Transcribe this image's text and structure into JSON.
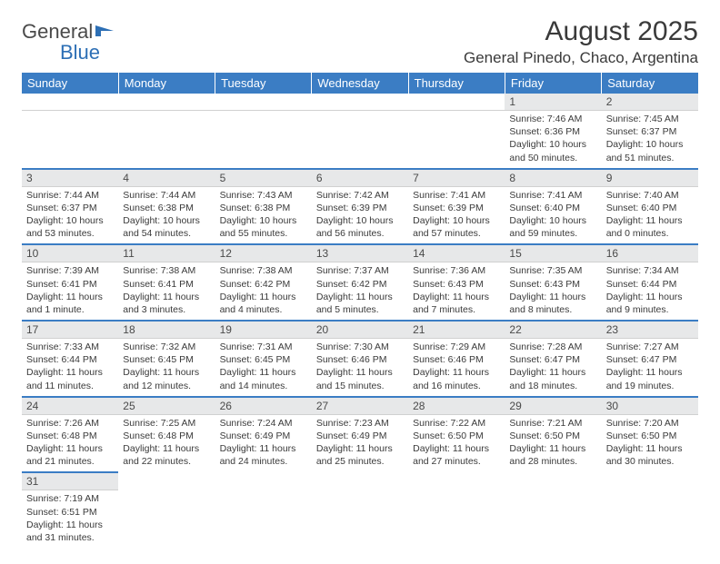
{
  "logo": {
    "word1": "General",
    "word2": "Blue"
  },
  "title": "August 2025",
  "location": "General Pinedo, Chaco, Argentina",
  "header_bg": "#3b7dc4",
  "days_of_week": [
    "Sunday",
    "Monday",
    "Tuesday",
    "Wednesday",
    "Thursday",
    "Friday",
    "Saturday"
  ],
  "colors": {
    "header_bg": "#3b7dc4",
    "header_text": "#ffffff",
    "daynum_bg": "#e7e8e9",
    "text": "#3a3a3a",
    "divider": "#3b7dc4"
  },
  "fonts": {
    "title_size_pt": 22,
    "location_size_pt": 13,
    "dow_size_pt": 10,
    "daynum_size_pt": 9,
    "body_size_pt": 8
  },
  "weeks": [
    [
      null,
      null,
      null,
      null,
      null,
      {
        "n": "1",
        "sunrise": "Sunrise: 7:46 AM",
        "sunset": "Sunset: 6:36 PM",
        "dl1": "Daylight: 10 hours",
        "dl2": "and 50 minutes."
      },
      {
        "n": "2",
        "sunrise": "Sunrise: 7:45 AM",
        "sunset": "Sunset: 6:37 PM",
        "dl1": "Daylight: 10 hours",
        "dl2": "and 51 minutes."
      }
    ],
    [
      {
        "n": "3",
        "sunrise": "Sunrise: 7:44 AM",
        "sunset": "Sunset: 6:37 PM",
        "dl1": "Daylight: 10 hours",
        "dl2": "and 53 minutes."
      },
      {
        "n": "4",
        "sunrise": "Sunrise: 7:44 AM",
        "sunset": "Sunset: 6:38 PM",
        "dl1": "Daylight: 10 hours",
        "dl2": "and 54 minutes."
      },
      {
        "n": "5",
        "sunrise": "Sunrise: 7:43 AM",
        "sunset": "Sunset: 6:38 PM",
        "dl1": "Daylight: 10 hours",
        "dl2": "and 55 minutes."
      },
      {
        "n": "6",
        "sunrise": "Sunrise: 7:42 AM",
        "sunset": "Sunset: 6:39 PM",
        "dl1": "Daylight: 10 hours",
        "dl2": "and 56 minutes."
      },
      {
        "n": "7",
        "sunrise": "Sunrise: 7:41 AM",
        "sunset": "Sunset: 6:39 PM",
        "dl1": "Daylight: 10 hours",
        "dl2": "and 57 minutes."
      },
      {
        "n": "8",
        "sunrise": "Sunrise: 7:41 AM",
        "sunset": "Sunset: 6:40 PM",
        "dl1": "Daylight: 10 hours",
        "dl2": "and 59 minutes."
      },
      {
        "n": "9",
        "sunrise": "Sunrise: 7:40 AM",
        "sunset": "Sunset: 6:40 PM",
        "dl1": "Daylight: 11 hours",
        "dl2": "and 0 minutes."
      }
    ],
    [
      {
        "n": "10",
        "sunrise": "Sunrise: 7:39 AM",
        "sunset": "Sunset: 6:41 PM",
        "dl1": "Daylight: 11 hours",
        "dl2": "and 1 minute."
      },
      {
        "n": "11",
        "sunrise": "Sunrise: 7:38 AM",
        "sunset": "Sunset: 6:41 PM",
        "dl1": "Daylight: 11 hours",
        "dl2": "and 3 minutes."
      },
      {
        "n": "12",
        "sunrise": "Sunrise: 7:38 AM",
        "sunset": "Sunset: 6:42 PM",
        "dl1": "Daylight: 11 hours",
        "dl2": "and 4 minutes."
      },
      {
        "n": "13",
        "sunrise": "Sunrise: 7:37 AM",
        "sunset": "Sunset: 6:42 PM",
        "dl1": "Daylight: 11 hours",
        "dl2": "and 5 minutes."
      },
      {
        "n": "14",
        "sunrise": "Sunrise: 7:36 AM",
        "sunset": "Sunset: 6:43 PM",
        "dl1": "Daylight: 11 hours",
        "dl2": "and 7 minutes."
      },
      {
        "n": "15",
        "sunrise": "Sunrise: 7:35 AM",
        "sunset": "Sunset: 6:43 PM",
        "dl1": "Daylight: 11 hours",
        "dl2": "and 8 minutes."
      },
      {
        "n": "16",
        "sunrise": "Sunrise: 7:34 AM",
        "sunset": "Sunset: 6:44 PM",
        "dl1": "Daylight: 11 hours",
        "dl2": "and 9 minutes."
      }
    ],
    [
      {
        "n": "17",
        "sunrise": "Sunrise: 7:33 AM",
        "sunset": "Sunset: 6:44 PM",
        "dl1": "Daylight: 11 hours",
        "dl2": "and 11 minutes."
      },
      {
        "n": "18",
        "sunrise": "Sunrise: 7:32 AM",
        "sunset": "Sunset: 6:45 PM",
        "dl1": "Daylight: 11 hours",
        "dl2": "and 12 minutes."
      },
      {
        "n": "19",
        "sunrise": "Sunrise: 7:31 AM",
        "sunset": "Sunset: 6:45 PM",
        "dl1": "Daylight: 11 hours",
        "dl2": "and 14 minutes."
      },
      {
        "n": "20",
        "sunrise": "Sunrise: 7:30 AM",
        "sunset": "Sunset: 6:46 PM",
        "dl1": "Daylight: 11 hours",
        "dl2": "and 15 minutes."
      },
      {
        "n": "21",
        "sunrise": "Sunrise: 7:29 AM",
        "sunset": "Sunset: 6:46 PM",
        "dl1": "Daylight: 11 hours",
        "dl2": "and 16 minutes."
      },
      {
        "n": "22",
        "sunrise": "Sunrise: 7:28 AM",
        "sunset": "Sunset: 6:47 PM",
        "dl1": "Daylight: 11 hours",
        "dl2": "and 18 minutes."
      },
      {
        "n": "23",
        "sunrise": "Sunrise: 7:27 AM",
        "sunset": "Sunset: 6:47 PM",
        "dl1": "Daylight: 11 hours",
        "dl2": "and 19 minutes."
      }
    ],
    [
      {
        "n": "24",
        "sunrise": "Sunrise: 7:26 AM",
        "sunset": "Sunset: 6:48 PM",
        "dl1": "Daylight: 11 hours",
        "dl2": "and 21 minutes."
      },
      {
        "n": "25",
        "sunrise": "Sunrise: 7:25 AM",
        "sunset": "Sunset: 6:48 PM",
        "dl1": "Daylight: 11 hours",
        "dl2": "and 22 minutes."
      },
      {
        "n": "26",
        "sunrise": "Sunrise: 7:24 AM",
        "sunset": "Sunset: 6:49 PM",
        "dl1": "Daylight: 11 hours",
        "dl2": "and 24 minutes."
      },
      {
        "n": "27",
        "sunrise": "Sunrise: 7:23 AM",
        "sunset": "Sunset: 6:49 PM",
        "dl1": "Daylight: 11 hours",
        "dl2": "and 25 minutes."
      },
      {
        "n": "28",
        "sunrise": "Sunrise: 7:22 AM",
        "sunset": "Sunset: 6:50 PM",
        "dl1": "Daylight: 11 hours",
        "dl2": "and 27 minutes."
      },
      {
        "n": "29",
        "sunrise": "Sunrise: 7:21 AM",
        "sunset": "Sunset: 6:50 PM",
        "dl1": "Daylight: 11 hours",
        "dl2": "and 28 minutes."
      },
      {
        "n": "30",
        "sunrise": "Sunrise: 7:20 AM",
        "sunset": "Sunset: 6:50 PM",
        "dl1": "Daylight: 11 hours",
        "dl2": "and 30 minutes."
      }
    ],
    [
      {
        "n": "31",
        "sunrise": "Sunrise: 7:19 AM",
        "sunset": "Sunset: 6:51 PM",
        "dl1": "Daylight: 11 hours",
        "dl2": "and 31 minutes."
      },
      null,
      null,
      null,
      null,
      null,
      null
    ]
  ]
}
